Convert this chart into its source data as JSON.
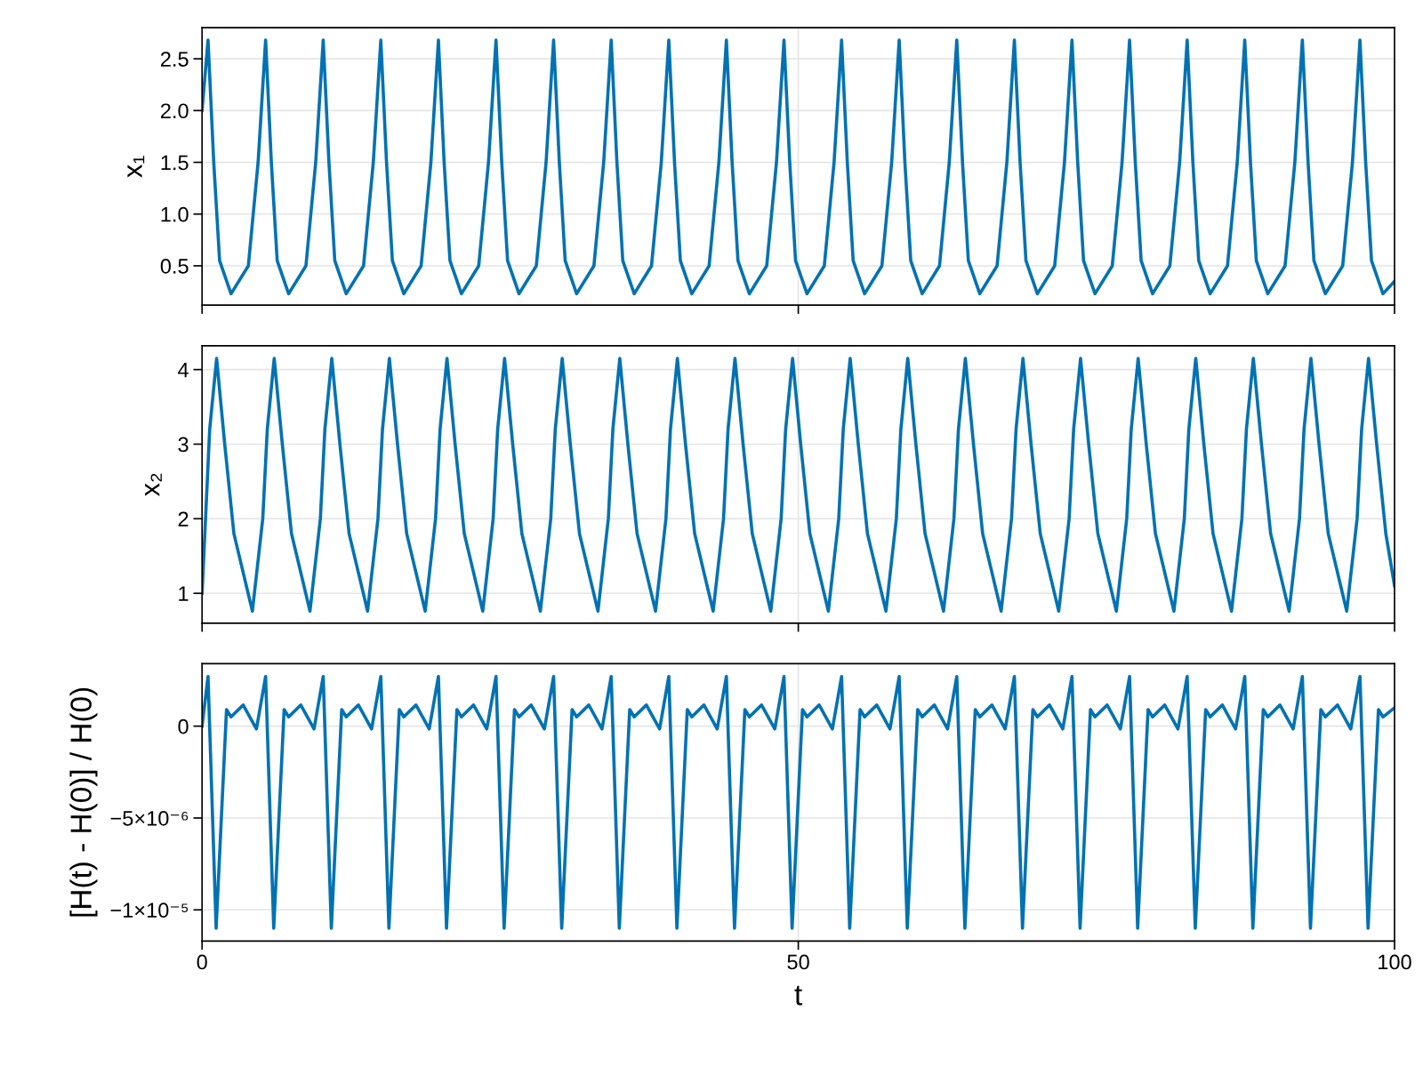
{
  "chart_data": [
    {
      "type": "line",
      "ylabel": "x₁",
      "xlim": [
        0,
        100
      ],
      "xticks": [
        0,
        50,
        100
      ],
      "ylim": [
        0.12,
        2.8
      ],
      "yticks": [
        {
          "value": 0.5,
          "label": "0.5"
        },
        {
          "value": 1,
          "label": "1.0"
        },
        {
          "value": 1.5,
          "label": "1.5"
        },
        {
          "value": 2,
          "label": "2.0"
        },
        {
          "value": 2.5,
          "label": "2.5"
        }
      ],
      "grid": true,
      "tick_labels": "y",
      "color": "#0072b2",
      "x": [
        0,
        0.5,
        0.98,
        1.47,
        2.43,
        3.88,
        4.7,
        5.33,
        5.81,
        6.3,
        7.26,
        8.71,
        9.53,
        10.16,
        10.64,
        11.13,
        12.09,
        13.54,
        14.36,
        14.99,
        15.47,
        15.96,
        16.92,
        18.37,
        19.19,
        19.82,
        20.3,
        20.79,
        21.75,
        23.2,
        24.02,
        24.65,
        25.13,
        25.62,
        26.58,
        28.03,
        28.85,
        29.48,
        29.96,
        30.45,
        31.41,
        32.86,
        33.68,
        34.31,
        34.79,
        35.28,
        36.24,
        37.69,
        38.51,
        39.14,
        39.62,
        40.11,
        41.07,
        42.52,
        43.34,
        43.97,
        44.45,
        44.94,
        45.9,
        47.35,
        48.17,
        48.8,
        49.28,
        49.77,
        50.73,
        52.18,
        53.0,
        53.63,
        54.11,
        54.6,
        55.56,
        57.01,
        57.83,
        58.46,
        58.94,
        59.43,
        60.39,
        61.84,
        62.66,
        63.29,
        63.77,
        64.26,
        65.22,
        66.67,
        67.49,
        68.12,
        68.6,
        69.09,
        70.05,
        71.5,
        72.32,
        72.95,
        73.43,
        73.92,
        74.88,
        76.33,
        77.15,
        77.78,
        78.26,
        78.75,
        79.71,
        81.16,
        81.98,
        82.61,
        83.09,
        83.58,
        84.54,
        85.99,
        86.81,
        87.44,
        87.92,
        88.41,
        89.37,
        90.82,
        91.64,
        92.27,
        92.75,
        93.24,
        94.2,
        95.65,
        96.47,
        97.1,
        97.58,
        98.07,
        99.03,
        100
      ],
      "values": [
        2.0,
        2.68,
        1.5,
        0.55,
        0.23,
        0.5,
        1.5,
        2.68,
        1.5,
        0.55,
        0.23,
        0.5,
        1.5,
        2.68,
        1.5,
        0.55,
        0.23,
        0.5,
        1.5,
        2.68,
        1.5,
        0.55,
        0.23,
        0.5,
        1.5,
        2.68,
        1.5,
        0.55,
        0.23,
        0.5,
        1.5,
        2.68,
        1.5,
        0.55,
        0.23,
        0.5,
        1.5,
        2.68,
        1.5,
        0.55,
        0.23,
        0.5,
        1.5,
        2.68,
        1.5,
        0.55,
        0.23,
        0.5,
        1.5,
        2.68,
        1.5,
        0.55,
        0.23,
        0.5,
        1.5,
        2.68,
        1.5,
        0.55,
        0.23,
        0.5,
        1.5,
        2.68,
        1.5,
        0.55,
        0.23,
        0.5,
        1.5,
        2.68,
        1.5,
        0.55,
        0.23,
        0.5,
        1.5,
        2.68,
        1.5,
        0.55,
        0.23,
        0.5,
        1.5,
        2.68,
        1.5,
        0.55,
        0.23,
        0.5,
        1.5,
        2.68,
        1.5,
        0.55,
        0.23,
        0.5,
        1.5,
        2.68,
        1.5,
        0.55,
        0.23,
        0.5,
        1.5,
        2.68,
        1.5,
        0.55,
        0.23,
        0.5,
        1.5,
        2.68,
        1.5,
        0.55,
        0.23,
        0.5,
        1.5,
        2.68,
        1.5,
        0.55,
        0.23,
        0.5,
        1.5,
        2.68,
        1.5,
        0.55,
        0.23,
        0.5,
        1.5,
        2.68,
        1.5,
        0.55,
        0.23,
        0.35
      ]
    },
    {
      "type": "line",
      "ylabel": "x₂",
      "xlim": [
        0,
        100
      ],
      "xticks": [
        0,
        50,
        100
      ],
      "ylim": [
        0.6,
        4.32
      ],
      "yticks": [
        1,
        2,
        3,
        4
      ],
      "grid": true,
      "tick_labels": "y",
      "color": "#0072b2",
      "x": [
        0,
        0.64,
        1.22,
        1.9,
        2.67,
        4.22,
        5.09,
        5.47,
        6.05,
        6.73,
        7.5,
        9.05,
        9.92,
        10.3,
        10.88,
        11.56,
        12.33,
        13.88,
        14.75,
        15.13,
        15.71,
        16.39,
        17.16,
        18.71,
        19.58,
        19.96,
        20.54,
        21.22,
        21.99,
        23.54,
        24.41,
        24.79,
        25.37,
        26.05,
        26.82,
        28.37,
        29.24,
        29.62,
        30.2,
        30.88,
        31.65,
        33.2,
        34.07,
        34.45,
        35.03,
        35.71,
        36.48,
        38.03,
        38.9,
        39.28,
        39.86,
        40.54,
        41.31,
        42.86,
        43.73,
        44.11,
        44.69,
        45.37,
        46.14,
        47.69,
        48.56,
        48.94,
        49.52,
        50.2,
        50.97,
        52.52,
        53.39,
        53.77,
        54.35,
        55.03,
        55.8,
        57.35,
        58.22,
        58.6,
        59.18,
        59.86,
        60.63,
        62.18,
        63.05,
        63.43,
        64.01,
        64.69,
        65.46,
        67.01,
        67.88,
        68.26,
        68.84,
        69.52,
        70.29,
        71.84,
        72.71,
        73.09,
        73.67,
        74.35,
        75.12,
        76.67,
        77.54,
        77.92,
        78.5,
        79.18,
        79.95,
        81.5,
        82.37,
        82.75,
        83.33,
        84.01,
        84.78,
        86.33,
        87.2,
        87.58,
        88.16,
        88.84,
        89.61,
        91.16,
        92.03,
        92.41,
        92.99,
        93.67,
        94.44,
        95.99,
        96.86,
        97.24,
        97.82,
        98.5,
        99.27,
        100
      ],
      "values": [
        1.0,
        3.2,
        4.15,
        3.0,
        1.8,
        0.76,
        2.0,
        3.2,
        4.15,
        3.0,
        1.8,
        0.76,
        2.0,
        3.2,
        4.15,
        3.0,
        1.8,
        0.76,
        2.0,
        3.2,
        4.15,
        3.0,
        1.8,
        0.76,
        2.0,
        3.2,
        4.15,
        3.0,
        1.8,
        0.76,
        2.0,
        3.2,
        4.15,
        3.0,
        1.8,
        0.76,
        2.0,
        3.2,
        4.15,
        3.0,
        1.8,
        0.76,
        2.0,
        3.2,
        4.15,
        3.0,
        1.8,
        0.76,
        2.0,
        3.2,
        4.15,
        3.0,
        1.8,
        0.76,
        2.0,
        3.2,
        4.15,
        3.0,
        1.8,
        0.76,
        2.0,
        3.2,
        4.15,
        3.0,
        1.8,
        0.76,
        2.0,
        3.2,
        4.15,
        3.0,
        1.8,
        0.76,
        2.0,
        3.2,
        4.15,
        3.0,
        1.8,
        0.76,
        2.0,
        3.2,
        4.15,
        3.0,
        1.8,
        0.76,
        2.0,
        3.2,
        4.15,
        3.0,
        1.8,
        0.76,
        2.0,
        3.2,
        4.15,
        3.0,
        1.8,
        0.76,
        2.0,
        3.2,
        4.15,
        3.0,
        1.8,
        0.76,
        2.0,
        3.2,
        4.15,
        3.0,
        1.8,
        0.76,
        2.0,
        3.2,
        4.15,
        3.0,
        1.8,
        0.76,
        2.0,
        3.2,
        4.15,
        3.0,
        1.8,
        0.76,
        2.0,
        3.2,
        4.15,
        3.0,
        1.8,
        1.1
      ]
    },
    {
      "type": "line",
      "ylabel": "[H(t) - H(0)] / H(0)",
      "xlabel": "t",
      "xlim": [
        0,
        100
      ],
      "xticks": [
        0,
        50,
        100
      ],
      "ylim": [
        -1.17e-05,
        3.4e-06
      ],
      "yticks": [
        {
          "value": -1e-05,
          "label": "−1×10⁻⁵"
        },
        {
          "value": -5e-06,
          "label": "−5×10⁻⁶"
        },
        {
          "value": 0,
          "label": "0"
        }
      ],
      "grid": true,
      "color": "#0072b2",
      "x": [
        0,
        0.5,
        1.18,
        2.05,
        2.43,
        3.45,
        4.56,
        5.33,
        6.01,
        6.88,
        7.26,
        8.28,
        9.39,
        10.16,
        10.84,
        11.71,
        12.09,
        13.11,
        14.22,
        14.99,
        15.67,
        16.54,
        16.92,
        17.94,
        19.05,
        19.82,
        20.5,
        21.37,
        21.75,
        22.77,
        23.88,
        24.65,
        25.33,
        26.2,
        26.58,
        27.6,
        28.71,
        29.48,
        30.16,
        31.03,
        31.41,
        32.43,
        33.54,
        34.31,
        34.99,
        35.86,
        36.24,
        37.26,
        38.37,
        39.14,
        39.82,
        40.69,
        41.07,
        42.09,
        43.2,
        43.97,
        44.65,
        45.52,
        45.9,
        46.92,
        48.03,
        48.8,
        49.48,
        50.35,
        50.73,
        51.75,
        52.86,
        53.63,
        54.31,
        55.18,
        55.56,
        56.58,
        57.69,
        58.46,
        59.14,
        60.01,
        60.39,
        61.41,
        62.52,
        63.29,
        63.97,
        64.84,
        65.22,
        66.24,
        67.35,
        68.12,
        68.8,
        69.67,
        70.05,
        71.07,
        72.18,
        72.95,
        73.63,
        74.5,
        74.88,
        75.9,
        77.01,
        77.78,
        78.46,
        79.33,
        79.71,
        80.73,
        81.84,
        82.61,
        83.29,
        84.16,
        84.54,
        85.56,
        86.67,
        87.44,
        88.12,
        88.99,
        89.37,
        90.39,
        91.5,
        92.27,
        92.95,
        93.82,
        94.2,
        95.22,
        96.33,
        97.1,
        97.78,
        98.65,
        99.03,
        100
      ],
      "values": [
        0,
        2.7e-06,
        -1.1e-05,
        9e-07,
        5e-07,
        1.15e-06,
        -1.5e-07,
        2.7e-06,
        -1.1e-05,
        9e-07,
        5e-07,
        1.15e-06,
        -1.5e-07,
        2.7e-06,
        -1.1e-05,
        9e-07,
        5e-07,
        1.15e-06,
        -1.5e-07,
        2.7e-06,
        -1.1e-05,
        9e-07,
        5e-07,
        1.15e-06,
        -1.5e-07,
        2.7e-06,
        -1.1e-05,
        9e-07,
        5e-07,
        1.15e-06,
        -1.5e-07,
        2.7e-06,
        -1.1e-05,
        9e-07,
        5e-07,
        1.15e-06,
        -1.5e-07,
        2.7e-06,
        -1.1e-05,
        9e-07,
        5e-07,
        1.15e-06,
        -1.5e-07,
        2.7e-06,
        -1.1e-05,
        9e-07,
        5e-07,
        1.15e-06,
        -1.5e-07,
        2.7e-06,
        -1.1e-05,
        9e-07,
        5e-07,
        1.15e-06,
        -1.5e-07,
        2.7e-06,
        -1.1e-05,
        9e-07,
        5e-07,
        1.15e-06,
        -1.5e-07,
        2.7e-06,
        -1.1e-05,
        9e-07,
        5e-07,
        1.15e-06,
        -1.5e-07,
        2.7e-06,
        -1.1e-05,
        9e-07,
        5e-07,
        1.15e-06,
        -1.5e-07,
        2.7e-06,
        -1.1e-05,
        9e-07,
        5e-07,
        1.15e-06,
        -1.5e-07,
        2.7e-06,
        -1.1e-05,
        9e-07,
        5e-07,
        1.15e-06,
        -1.5e-07,
        2.7e-06,
        -1.1e-05,
        9e-07,
        5e-07,
        1.15e-06,
        -1.5e-07,
        2.7e-06,
        -1.1e-05,
        9e-07,
        5e-07,
        1.15e-06,
        -1.5e-07,
        2.7e-06,
        -1.1e-05,
        9e-07,
        5e-07,
        1.15e-06,
        -1.5e-07,
        2.7e-06,
        -1.1e-05,
        9e-07,
        5e-07,
        1.15e-06,
        -1.5e-07,
        2.7e-06,
        -1.1e-05,
        9e-07,
        5e-07,
        1.15e-06,
        -1.5e-07,
        2.7e-06,
        -1.1e-05,
        9e-07,
        5e-07,
        1.15e-06,
        -1.5e-07,
        2.7e-06,
        -1.1e-05,
        9e-07,
        5e-07,
        1e-06
      ]
    }
  ]
}
